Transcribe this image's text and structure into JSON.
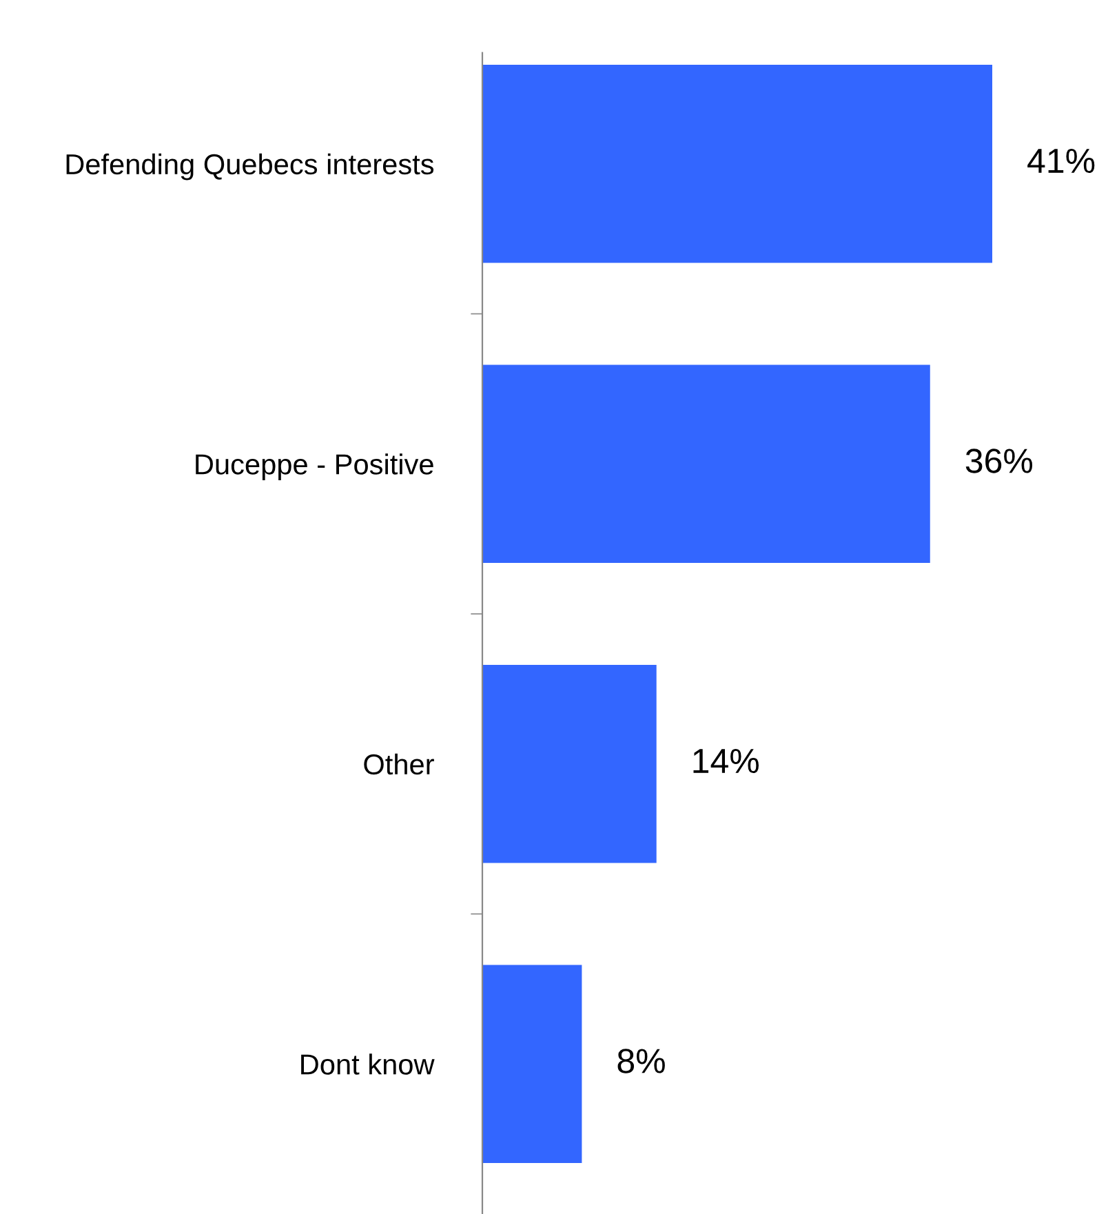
{
  "chart_data": {
    "type": "bar",
    "orientation": "horizontal",
    "categories": [
      "Defending Quebecs interests",
      "Duceppe - Positive",
      "Other",
      "Dont know"
    ],
    "values": [
      41,
      36,
      14,
      8
    ],
    "color": "#3366ff",
    "value_labels": [
      "41%",
      "36%",
      "14%",
      "8%"
    ],
    "grid": false,
    "legend": false,
    "tick_labels": "y"
  }
}
